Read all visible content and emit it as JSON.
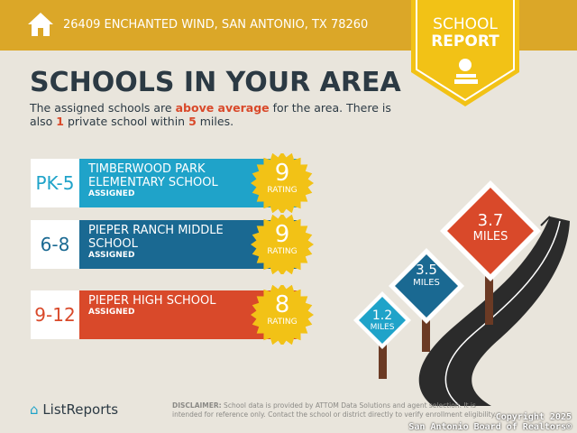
{
  "header": {
    "address": "26409 ENCHANTED WIND, SAN ANTONIO, TX 78260",
    "icon": "home-icon",
    "badge_line1": "SCHOOL",
    "badge_line2": "REPORT",
    "badge_icon": "apple-books-icon"
  },
  "title": "SCHOOLS IN YOUR AREA",
  "intro": {
    "p1": "The assigned schools are ",
    "p2": "above average",
    "p3": " for the area. There is also ",
    "p4": "1",
    "p5": " private school within ",
    "p6": "5",
    "p7": " miles."
  },
  "schools": [
    {
      "grade": "PK-5",
      "name": "TIMBERWOOD PARK ELEMENTARY SCHOOL",
      "status": "ASSIGNED",
      "rating": "9",
      "rating_label": "RATING",
      "color": "#1fa3c9"
    },
    {
      "grade": "6-8",
      "name": "PIEPER RANCH MIDDLE SCHOOL",
      "status": "ASSIGNED",
      "rating": "9",
      "rating_label": "RATING",
      "color": "#1a6992"
    },
    {
      "grade": "9-12",
      "name": "PIEPER HIGH SCHOOL",
      "status": "ASSIGNED",
      "rating": "8",
      "rating_label": "RATING",
      "color": "#d9492a"
    }
  ],
  "signs": [
    {
      "value": "1.2",
      "unit": "MILES",
      "color": "#1fa3c9"
    },
    {
      "value": "3.5",
      "unit": "MILES",
      "color": "#1a6992"
    },
    {
      "value": "3.7",
      "unit": "MILES",
      "color": "#d9492a"
    }
  ],
  "footer": {
    "logo": "ListReports",
    "disclaimer_label": "DISCLAIMER:",
    "disclaimer": " School data is provided by ATTOM Data Solutions and agent selection. It is intended for reference only. Contact the school or district directly to verify enrollment eligibility.",
    "copyright1": "Copyright 2025",
    "copyright2": "San Antonio Board of Realtors®"
  }
}
